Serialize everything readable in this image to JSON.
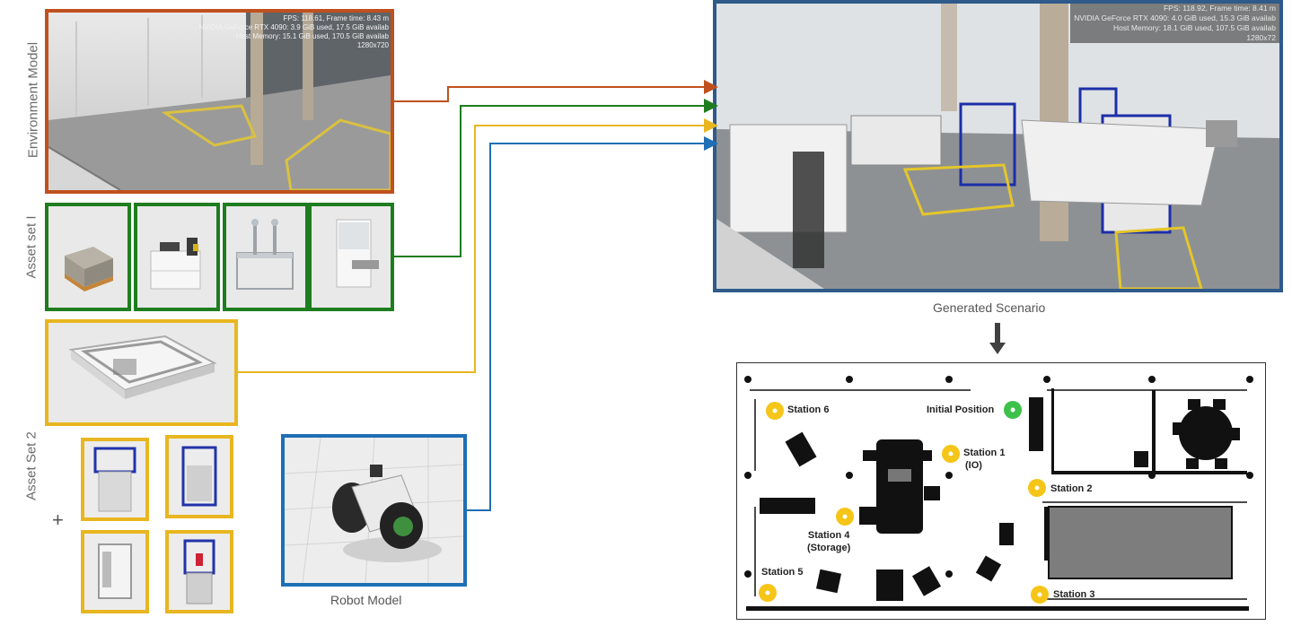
{
  "labels": {
    "environment_model": "Environment Model",
    "asset_set_1": "Asset set I",
    "asset_set_2": "Asset Set 2",
    "plus": "+",
    "robot_model": "Robot Model",
    "generated_scenario": "Generated Scenario"
  },
  "env_hud": {
    "line1": "FPS: 118.61, Frame time: 8.43 m",
    "line2": "NVIDIA GeForce RTX 4090: 3.9 GiB used, 17.5 GiB availab",
    "line3": "Host Memory: 15.1 GiB used, 170.5 GiB availab",
    "line4": "1280x720"
  },
  "scenario_hud": {
    "line1": "FPS: 118.92, Frame time: 8.41 m",
    "line2": "NVIDIA GeForce RTX 4090: 4.0 GiB used, 15.3 GiB availab",
    "line3": "Host Memory: 18.1 GiB used, 107.5 GiB availab",
    "line4": "1280x72"
  },
  "map": {
    "station6": "Station 6",
    "initial_position": "Initial Position",
    "station1_a": "Station 1",
    "station1_b": "(IO)",
    "station2": "Station 2",
    "station4_a": "Station 4",
    "station4_b": "(Storage)",
    "station5": "Station 5",
    "station3": "Station 3"
  },
  "colors": {
    "environment": "#c0501e",
    "asset_set_1": "#1e7d1e",
    "asset_set_2": "#e8b620",
    "robot": "#1f6fb5",
    "scenario_frame": "#2f5a8a",
    "station_marker": "#f5c518",
    "initial_marker": "#3cc24a"
  }
}
